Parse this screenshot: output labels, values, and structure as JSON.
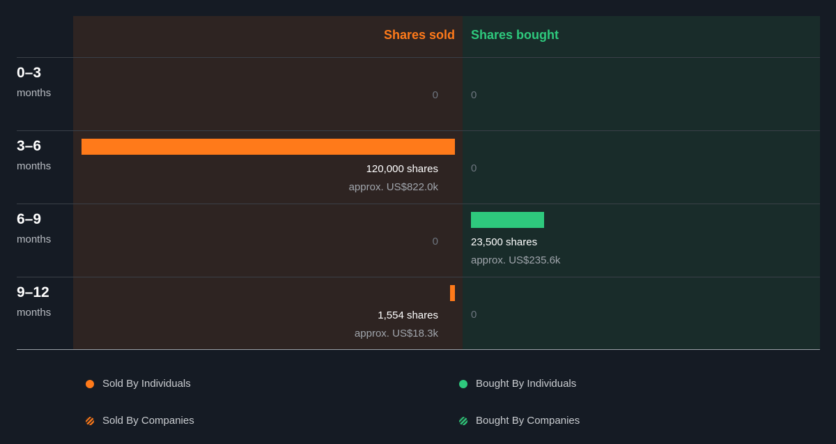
{
  "colors": {
    "sold": "#ff7a1a",
    "bought": "#2ec97d"
  },
  "headers": {
    "sold": "Shares sold",
    "bought": "Shares bought"
  },
  "rows": [
    {
      "range": "0–3",
      "unit": "months",
      "sold": {
        "zero": "0"
      },
      "bought": {
        "zero": "0"
      }
    },
    {
      "range": "3–6",
      "unit": "months",
      "sold": {
        "amount": "120,000 shares",
        "approx": "approx. US$822.0k"
      },
      "bought": {
        "zero": "0"
      }
    },
    {
      "range": "6–9",
      "unit": "months",
      "sold": {
        "zero": "0"
      },
      "bought": {
        "amount": "23,500 shares",
        "approx": "approx. US$235.6k"
      }
    },
    {
      "range": "9–12",
      "unit": "months",
      "sold": {
        "amount": "1,554 shares",
        "approx": "approx. US$18.3k"
      },
      "bought": {
        "zero": "0"
      }
    }
  ],
  "legend": {
    "sold_individuals": "Sold By Individuals",
    "bought_individuals": "Bought By Individuals",
    "sold_companies": "Sold By Companies",
    "bought_companies": "Bought By Companies"
  },
  "chart_data": {
    "type": "bar",
    "categories": [
      "0–3 months",
      "3–6 months",
      "6–9 months",
      "9–12 months"
    ],
    "series": [
      {
        "name": "Shares sold",
        "values": [
          0,
          120000,
          0,
          1554
        ]
      },
      {
        "name": "Shares bought",
        "values": [
          0,
          0,
          23500,
          0
        ]
      }
    ],
    "value_labels": {
      "Shares sold": [
        "0",
        "120,000 shares / approx. US$822.0k",
        "0",
        "1,554 shares / approx. US$18.3k"
      ],
      "Shares bought": [
        "0",
        "0",
        "23,500 shares / approx. US$235.6k",
        "0"
      ]
    },
    "title": "",
    "xlabel": "",
    "ylabel": "",
    "legend": [
      "Sold By Individuals",
      "Bought By Individuals",
      "Sold By Companies",
      "Bought By Companies"
    ],
    "legend_position": "bottom",
    "orientation": "horizontal-diverging"
  }
}
